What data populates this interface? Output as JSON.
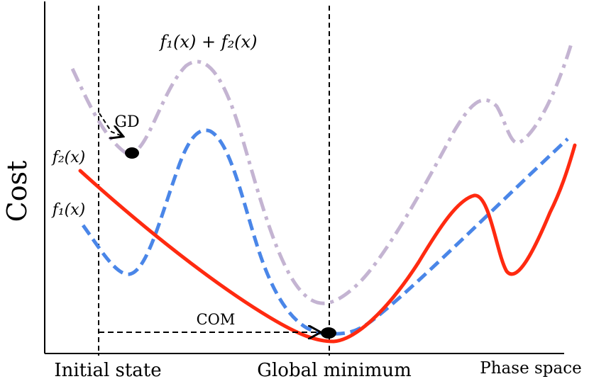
{
  "y_axis_label": "Cost",
  "x_labels": {
    "initial": "Initial state",
    "global": "Global minimum",
    "phase": "Phase space"
  },
  "curve_labels": {
    "sum": "f₁(x) + f₂(x)",
    "f2": "f₂(x)",
    "f1": "f₁(x)"
  },
  "annotations": {
    "gd": "GD",
    "com": "COM"
  },
  "colors": {
    "sum_curve": "#c4b4d2",
    "f1_curve": "#4a86e8",
    "f2_curve": "#ff2a10",
    "axes": "#000000",
    "markers": "#000000"
  },
  "line_styles": {
    "sum_curve": "dash-dot",
    "f1_curve": "dashed",
    "f2_curve": "solid",
    "guides": "dashed"
  }
}
